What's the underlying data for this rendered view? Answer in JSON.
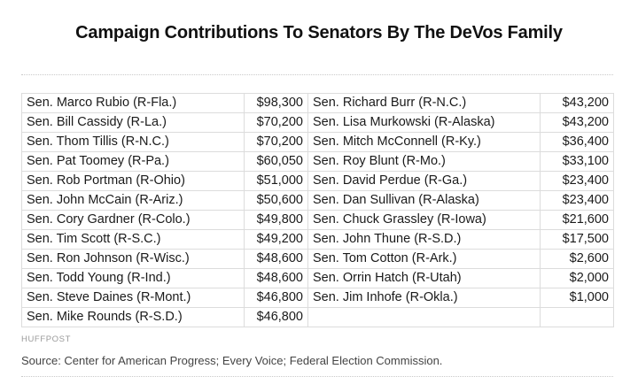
{
  "title": "Campaign Contributions To Senators By The DeVos Family",
  "rows": [
    {
      "left_name": "Sen. Marco Rubio (R-Fla.)",
      "left_amount": "$98,300",
      "right_name": "Sen. Richard Burr (R-N.C.)",
      "right_amount": "$43,200"
    },
    {
      "left_name": "Sen. Bill Cassidy (R-La.)",
      "left_amount": "$70,200",
      "right_name": "Sen. Lisa Murkowski (R-Alaska)",
      "right_amount": "$43,200"
    },
    {
      "left_name": "Sen. Thom Tillis (R-N.C.)",
      "left_amount": "$70,200",
      "right_name": "Sen. Mitch McConnell (R-Ky.)",
      "right_amount": "$36,400"
    },
    {
      "left_name": "Sen. Pat Toomey (R-Pa.)",
      "left_amount": "$60,050",
      "right_name": "Sen. Roy Blunt (R-Mo.)",
      "right_amount": "$33,100"
    },
    {
      "left_name": "Sen. Rob Portman (R-Ohio)",
      "left_amount": "$51,000",
      "right_name": "Sen. David Perdue (R-Ga.)",
      "right_amount": "$23,400"
    },
    {
      "left_name": "Sen. John McCain (R-Ariz.)",
      "left_amount": "$50,600",
      "right_name": "Sen. Dan Sullivan (R-Alaska)",
      "right_amount": "$23,400"
    },
    {
      "left_name": "Sen. Cory Gardner (R-Colo.)",
      "left_amount": "$49,800",
      "right_name": "Sen. Chuck Grassley (R-Iowa)",
      "right_amount": "$21,600"
    },
    {
      "left_name": "Sen. Tim Scott (R-S.C.)",
      "left_amount": "$49,200",
      "right_name": "Sen. John Thune (R-S.D.)",
      "right_amount": "$17,500"
    },
    {
      "left_name": "Sen. Ron Johnson (R-Wisc.)",
      "left_amount": "$48,600",
      "right_name": "Sen. Tom Cotton (R-Ark.)",
      "right_amount": "$2,600"
    },
    {
      "left_name": "Sen. Todd Young (R-Ind.)",
      "left_amount": "$48,600",
      "right_name": "Sen. Orrin Hatch (R-Utah)",
      "right_amount": "$2,000"
    },
    {
      "left_name": "Sen. Steve Daines (R-Mont.)",
      "left_amount": "$46,800",
      "right_name": "Sen. Jim Inhofe (R-Okla.)",
      "right_amount": "$1,000"
    },
    {
      "left_name": "Sen. Mike Rounds (R-S.D.)",
      "left_amount": "$46,800",
      "right_name": "",
      "right_amount": ""
    }
  ],
  "credit": "HUFFPOST",
  "source": "Source: Center for American Progress; Every Voice; Federal Election Commission."
}
